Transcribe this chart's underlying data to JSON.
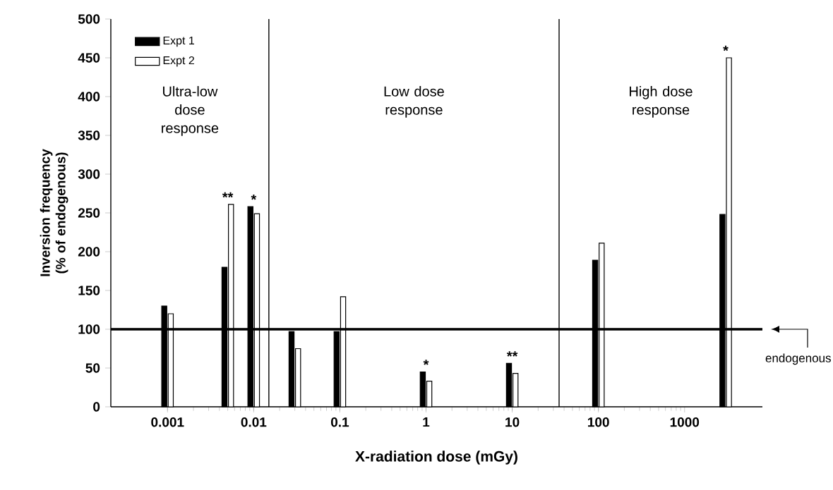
{
  "chart_data": {
    "type": "bar",
    "xlabel": "X-radiation dose (mGy)",
    "ylabel": "Inversion frequency (% of endogenous)",
    "log": "x",
    "x": [
      0.001,
      0.005,
      0.01,
      0.03,
      0.1,
      1,
      10,
      100,
      3000
    ],
    "series": [
      {
        "name": "Expt 1",
        "color": "#000000",
        "values": [
          130,
          180,
          258,
          97,
          97,
          45,
          56,
          189,
          248
        ]
      },
      {
        "name": "Expt 2",
        "color": "#ffffff",
        "values": [
          120,
          261,
          249,
          75,
          142,
          33,
          43,
          211,
          450
        ]
      }
    ],
    "xlim": [
      0.00022,
      8000
    ],
    "xticks": [
      0.001,
      0.01,
      0.1,
      1,
      10,
      100,
      1000
    ],
    "ylim": [
      0,
      500
    ],
    "yticks": [
      0,
      50,
      100,
      150,
      200,
      250,
      300,
      350,
      400,
      450,
      500
    ],
    "ref_lines": [
      {
        "axis": "x",
        "value": 0.015
      },
      {
        "axis": "x",
        "value": 35
      },
      {
        "axis": "y",
        "value": 100,
        "label": "endogenous"
      }
    ],
    "annotations": [
      "Ultra-low dose response",
      "Low dose response",
      "High dose response",
      {
        "text": "**",
        "x": 0.005,
        "y": 261
      },
      {
        "text": "*",
        "x": 0.01,
        "y": 258
      },
      {
        "text": "*",
        "x": 1,
        "y": 45
      },
      {
        "text": "**",
        "x": 10,
        "y": 56
      },
      {
        "text": "*",
        "x": 3000,
        "y": 450
      }
    ],
    "legend": "top left"
  }
}
